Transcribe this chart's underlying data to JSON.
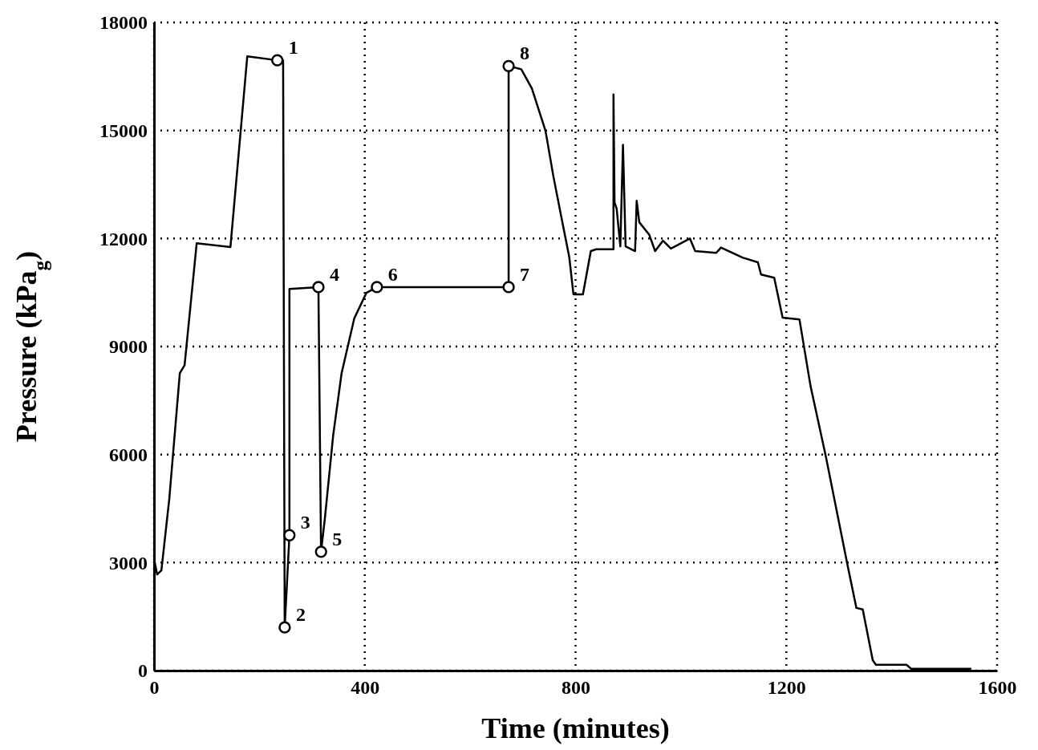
{
  "chart_data": {
    "type": "line",
    "xlabel": "Time (minutes)",
    "ylabel": "Pressure (kPa$_{g}$)",
    "xlim": [
      0,
      1600
    ],
    "xticks": [
      0,
      400,
      800,
      1200,
      1600
    ],
    "ylim": [
      0,
      18000
    ],
    "yticks": [
      0,
      3000,
      6000,
      9000,
      12000,
      15000,
      18000
    ],
    "grid": true,
    "line_style": "solid",
    "marker": "none",
    "series": [
      {
        "color": "#000000",
        "x": [
          0,
          6,
          14,
          29,
          49,
          58,
          81,
          145,
          177,
          234,
          245,
          248,
          257,
          257,
          312,
          317,
          324,
          340,
          356,
          380,
          403,
          423,
          673,
          673,
          697,
          717,
          743,
          758,
          773,
          788,
          796,
          814,
          829,
          839,
          872,
          872,
          874,
          878,
          885,
          890,
          895,
          913,
          916,
          921,
          940,
          951,
          966,
          981,
          1017,
          1027,
          1067,
          1076,
          1117,
          1146,
          1152,
          1177,
          1193,
          1225,
          1246,
          1275,
          1316,
          1333,
          1345,
          1364,
          1370,
          1428,
          1437,
          1551
        ],
        "values": [
          3100,
          2670,
          2780,
          4770,
          8260,
          8480,
          11870,
          11760,
          17060,
          16950,
          16950,
          1200,
          3760,
          10600,
          10650,
          3300,
          4190,
          6530,
          8260,
          9780,
          10490,
          10650,
          10650,
          16790,
          16700,
          16170,
          14990,
          13720,
          12600,
          11490,
          10450,
          10450,
          11650,
          11700,
          11700,
          16000,
          13000,
          12830,
          11780,
          14600,
          11780,
          11650,
          13050,
          12450,
          12100,
          11650,
          11940,
          11720,
          12000,
          11650,
          11600,
          11750,
          11470,
          11340,
          11000,
          10910,
          9800,
          9750,
          7900,
          5950,
          2940,
          1740,
          1700,
          290,
          160,
          160,
          50,
          50
        ]
      },
      {
        "type": "scatter",
        "marker": "circle",
        "color": "#000000",
        "x": [
          234,
          248,
          257,
          312,
          317,
          423,
          673,
          673
        ],
        "values": [
          16950,
          1200,
          3760,
          10650,
          3300,
          10650,
          10650,
          16790
        ]
      }
    ],
    "annotations": [
      {
        "text": "1",
        "x": 234,
        "y": 16950
      },
      {
        "text": "2",
        "x": 248,
        "y": 1200
      },
      {
        "text": "3",
        "x": 257,
        "y": 3760
      },
      {
        "text": "4",
        "x": 312,
        "y": 10650
      },
      {
        "text": "5",
        "x": 317,
        "y": 3300
      },
      {
        "text": "6",
        "x": 423,
        "y": 10650
      },
      {
        "text": "7",
        "x": 673,
        "y": 10650
      },
      {
        "text": "8",
        "x": 673,
        "y": 16790
      }
    ]
  }
}
